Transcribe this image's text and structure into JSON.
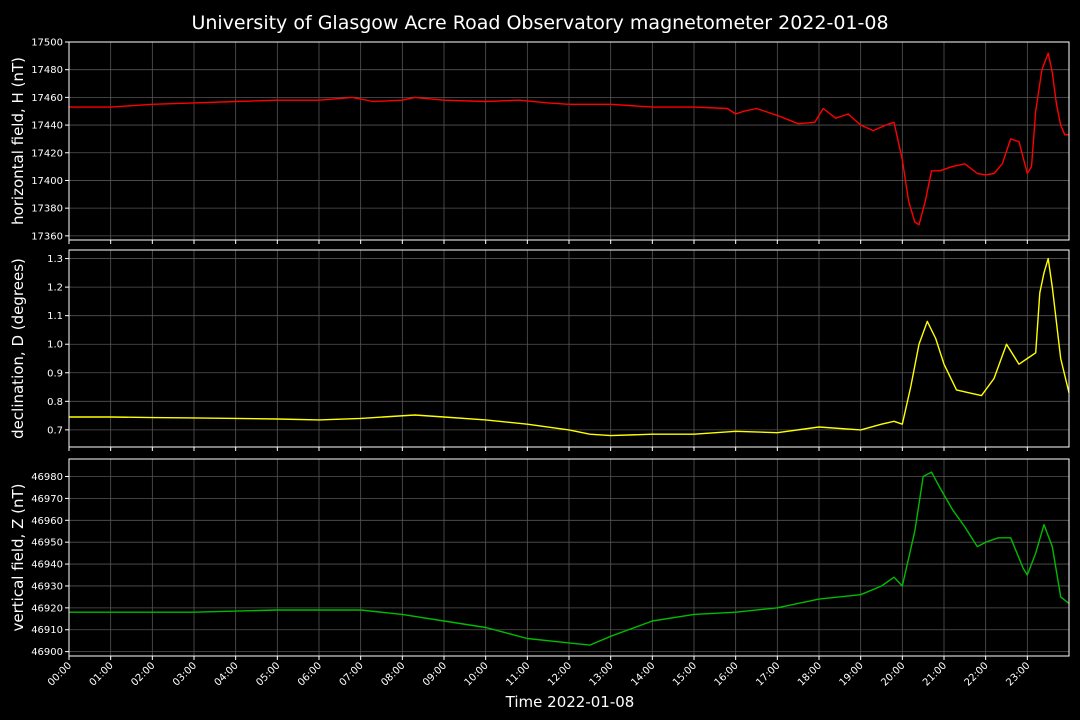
{
  "title": "University of Glasgow Acre Road Observatory magnetometer 2022-01-08",
  "xlabel": "Time 2022-01-08",
  "x_ticks": [
    "00:00",
    "01:00",
    "02:00",
    "03:00",
    "04:00",
    "05:00",
    "06:00",
    "07:00",
    "08:00",
    "09:00",
    "10:00",
    "11:00",
    "12:00",
    "13:00",
    "14:00",
    "15:00",
    "16:00",
    "17:00",
    "18:00",
    "19:00",
    "20:00",
    "21:00",
    "22:00",
    "23:00"
  ],
  "chart_data": [
    {
      "type": "line",
      "ylabel": "horizontal field, H (nT)",
      "color": "#ff0000",
      "ylim": [
        17357,
        17500
      ],
      "yticks": [
        17360,
        17380,
        17400,
        17420,
        17440,
        17460,
        17480,
        17500
      ],
      "ytick_labels": [
        "17360",
        "17380",
        "17400",
        "17420",
        "17440",
        "17460",
        "17480",
        "17500"
      ],
      "xlim_hours": [
        0,
        24
      ],
      "series": [
        {
          "x_hours": [
            0,
            0.5,
            1,
            1.5,
            2,
            3,
            4,
            5,
            6,
            6.8,
            7.3,
            8,
            8.3,
            9,
            10,
            10.8,
            11.5,
            12,
            13,
            14,
            15,
            15.8,
            16,
            16.2,
            16.5,
            17,
            17.5,
            17.9,
            18.1,
            18.4,
            18.7,
            19,
            19.3,
            19.6,
            19.8,
            20.0,
            20.15,
            20.3,
            20.4,
            20.55,
            20.7,
            20.9,
            21.2,
            21.5,
            21.8,
            22.0,
            22.2,
            22.4,
            22.6,
            22.8,
            23.0,
            23.1,
            23.2,
            23.35,
            23.5,
            23.6,
            23.7,
            23.8,
            23.9,
            24.0
          ],
          "values": [
            17453,
            17453,
            17453,
            17454,
            17455,
            17456,
            17457,
            17458,
            17458,
            17460,
            17457,
            17458,
            17460,
            17458,
            17457,
            17458,
            17456,
            17455,
            17455,
            17453,
            17453,
            17452,
            17448,
            17450,
            17452,
            17447,
            17441,
            17442,
            17452,
            17445,
            17448,
            17440,
            17436,
            17440,
            17442,
            17415,
            17385,
            17370,
            17368,
            17385,
            17407,
            17407,
            17410,
            17412,
            17405,
            17404,
            17405,
            17412,
            17430,
            17428,
            17405,
            17410,
            17450,
            17480,
            17492,
            17478,
            17455,
            17440,
            17433,
            17433
          ]
        }
      ]
    },
    {
      "type": "line",
      "ylabel": "declination, D (degrees)",
      "color": "#ffff00",
      "ylim": [
        0.64,
        1.33
      ],
      "yticks": [
        0.7,
        0.8,
        0.9,
        1.0,
        1.1,
        1.2,
        1.3
      ],
      "ytick_labels": [
        "0.7",
        "0.8",
        "0.9",
        "1.0",
        "1.1",
        "1.2",
        "1.3"
      ],
      "xlim_hours": [
        0,
        24
      ],
      "series": [
        {
          "x_hours": [
            0,
            1,
            2,
            3,
            4,
            5,
            6,
            7,
            8.3,
            9,
            10,
            11,
            12,
            12.5,
            13,
            14,
            15,
            16,
            17,
            18,
            19,
            19.5,
            19.8,
            20.0,
            20.2,
            20.4,
            20.6,
            20.8,
            21.0,
            21.3,
            21.6,
            21.9,
            22.2,
            22.5,
            22.8,
            23.0,
            23.2,
            23.3,
            23.4,
            23.5,
            23.6,
            23.8,
            24.0
          ],
          "values": [
            0.745,
            0.745,
            0.743,
            0.742,
            0.74,
            0.738,
            0.735,
            0.74,
            0.752,
            0.745,
            0.735,
            0.72,
            0.7,
            0.685,
            0.68,
            0.685,
            0.685,
            0.695,
            0.69,
            0.71,
            0.7,
            0.72,
            0.73,
            0.72,
            0.85,
            1.0,
            1.08,
            1.02,
            0.93,
            0.84,
            0.83,
            0.82,
            0.88,
            1.0,
            0.93,
            0.95,
            0.97,
            1.18,
            1.25,
            1.3,
            1.2,
            0.95,
            0.83
          ]
        }
      ]
    },
    {
      "type": "line",
      "ylabel": "vertical field, Z (nT)",
      "color": "#00bb00",
      "ylim": [
        46898,
        46988
      ],
      "yticks": [
        46900,
        46910,
        46920,
        46930,
        46940,
        46950,
        46960,
        46970,
        46980
      ],
      "ytick_labels": [
        "46900",
        "46910",
        "46920",
        "46930",
        "46940",
        "46950",
        "46960",
        "46970",
        "46980"
      ],
      "xlim_hours": [
        0,
        24
      ],
      "series": [
        {
          "x_hours": [
            0,
            1,
            2,
            3,
            4,
            5,
            6,
            7,
            8,
            9,
            10,
            11,
            12,
            12.5,
            13,
            14,
            15,
            16,
            17,
            18,
            19,
            19.5,
            19.8,
            20.0,
            20.3,
            20.5,
            20.7,
            20.9,
            21.2,
            21.5,
            21.8,
            22.0,
            22.3,
            22.6,
            22.9,
            23.0,
            23.2,
            23.4,
            23.6,
            23.8,
            24.0
          ],
          "values": [
            46918,
            46918,
            46918,
            46918,
            46918.5,
            46919,
            46919,
            46919,
            46917,
            46914,
            46911,
            46906,
            46904,
            46903,
            46907,
            46914,
            46917,
            46918,
            46920,
            46924,
            46926,
            46930,
            46934,
            46930,
            46955,
            46980,
            46982,
            46975,
            46965,
            46957,
            46948,
            46950,
            46952,
            46952,
            46938,
            46935,
            46945,
            46958,
            46948,
            46925,
            46922
          ]
        }
      ]
    }
  ]
}
